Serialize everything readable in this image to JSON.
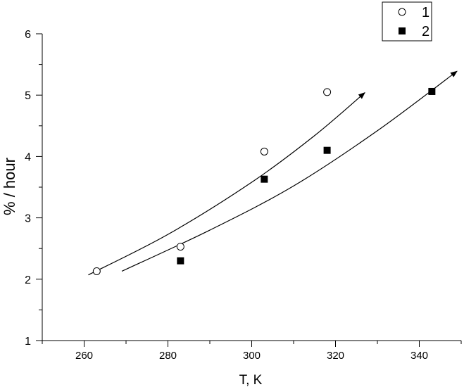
{
  "chart_data": {
    "type": "scatter",
    "title": "",
    "xlabel": "T, K",
    "ylabel": "% / hour",
    "xlim": [
      250,
      350
    ],
    "ylim": [
      1,
      6
    ],
    "x_ticks": [
      260,
      280,
      300,
      320,
      340
    ],
    "y_ticks": [
      1,
      2,
      3,
      4,
      5,
      6
    ],
    "grid": false,
    "legend_position": "top-right",
    "series": [
      {
        "name": "1",
        "marker": "open-circle",
        "color": "#000000",
        "points": [
          {
            "x": 263,
            "y": 2.13
          },
          {
            "x": 283,
            "y": 2.53
          },
          {
            "x": 303,
            "y": 4.08
          },
          {
            "x": 318,
            "y": 5.05
          }
        ],
        "trend": [
          {
            "x": 261,
            "y": 2.07
          },
          {
            "x": 280,
            "y": 2.73
          },
          {
            "x": 300,
            "y": 3.58
          },
          {
            "x": 315,
            "y": 4.34
          },
          {
            "x": 327,
            "y": 5.04
          }
        ]
      },
      {
        "name": "2",
        "marker": "filled-square",
        "color": "#000000",
        "points": [
          {
            "x": 283,
            "y": 2.3
          },
          {
            "x": 303,
            "y": 3.63
          },
          {
            "x": 318,
            "y": 4.1
          },
          {
            "x": 343,
            "y": 5.06
          }
        ],
        "trend": [
          {
            "x": 269,
            "y": 2.13
          },
          {
            "x": 290,
            "y": 2.8
          },
          {
            "x": 310,
            "y": 3.52
          },
          {
            "x": 330,
            "y": 4.42
          },
          {
            "x": 349,
            "y": 5.39
          }
        ]
      }
    ]
  }
}
